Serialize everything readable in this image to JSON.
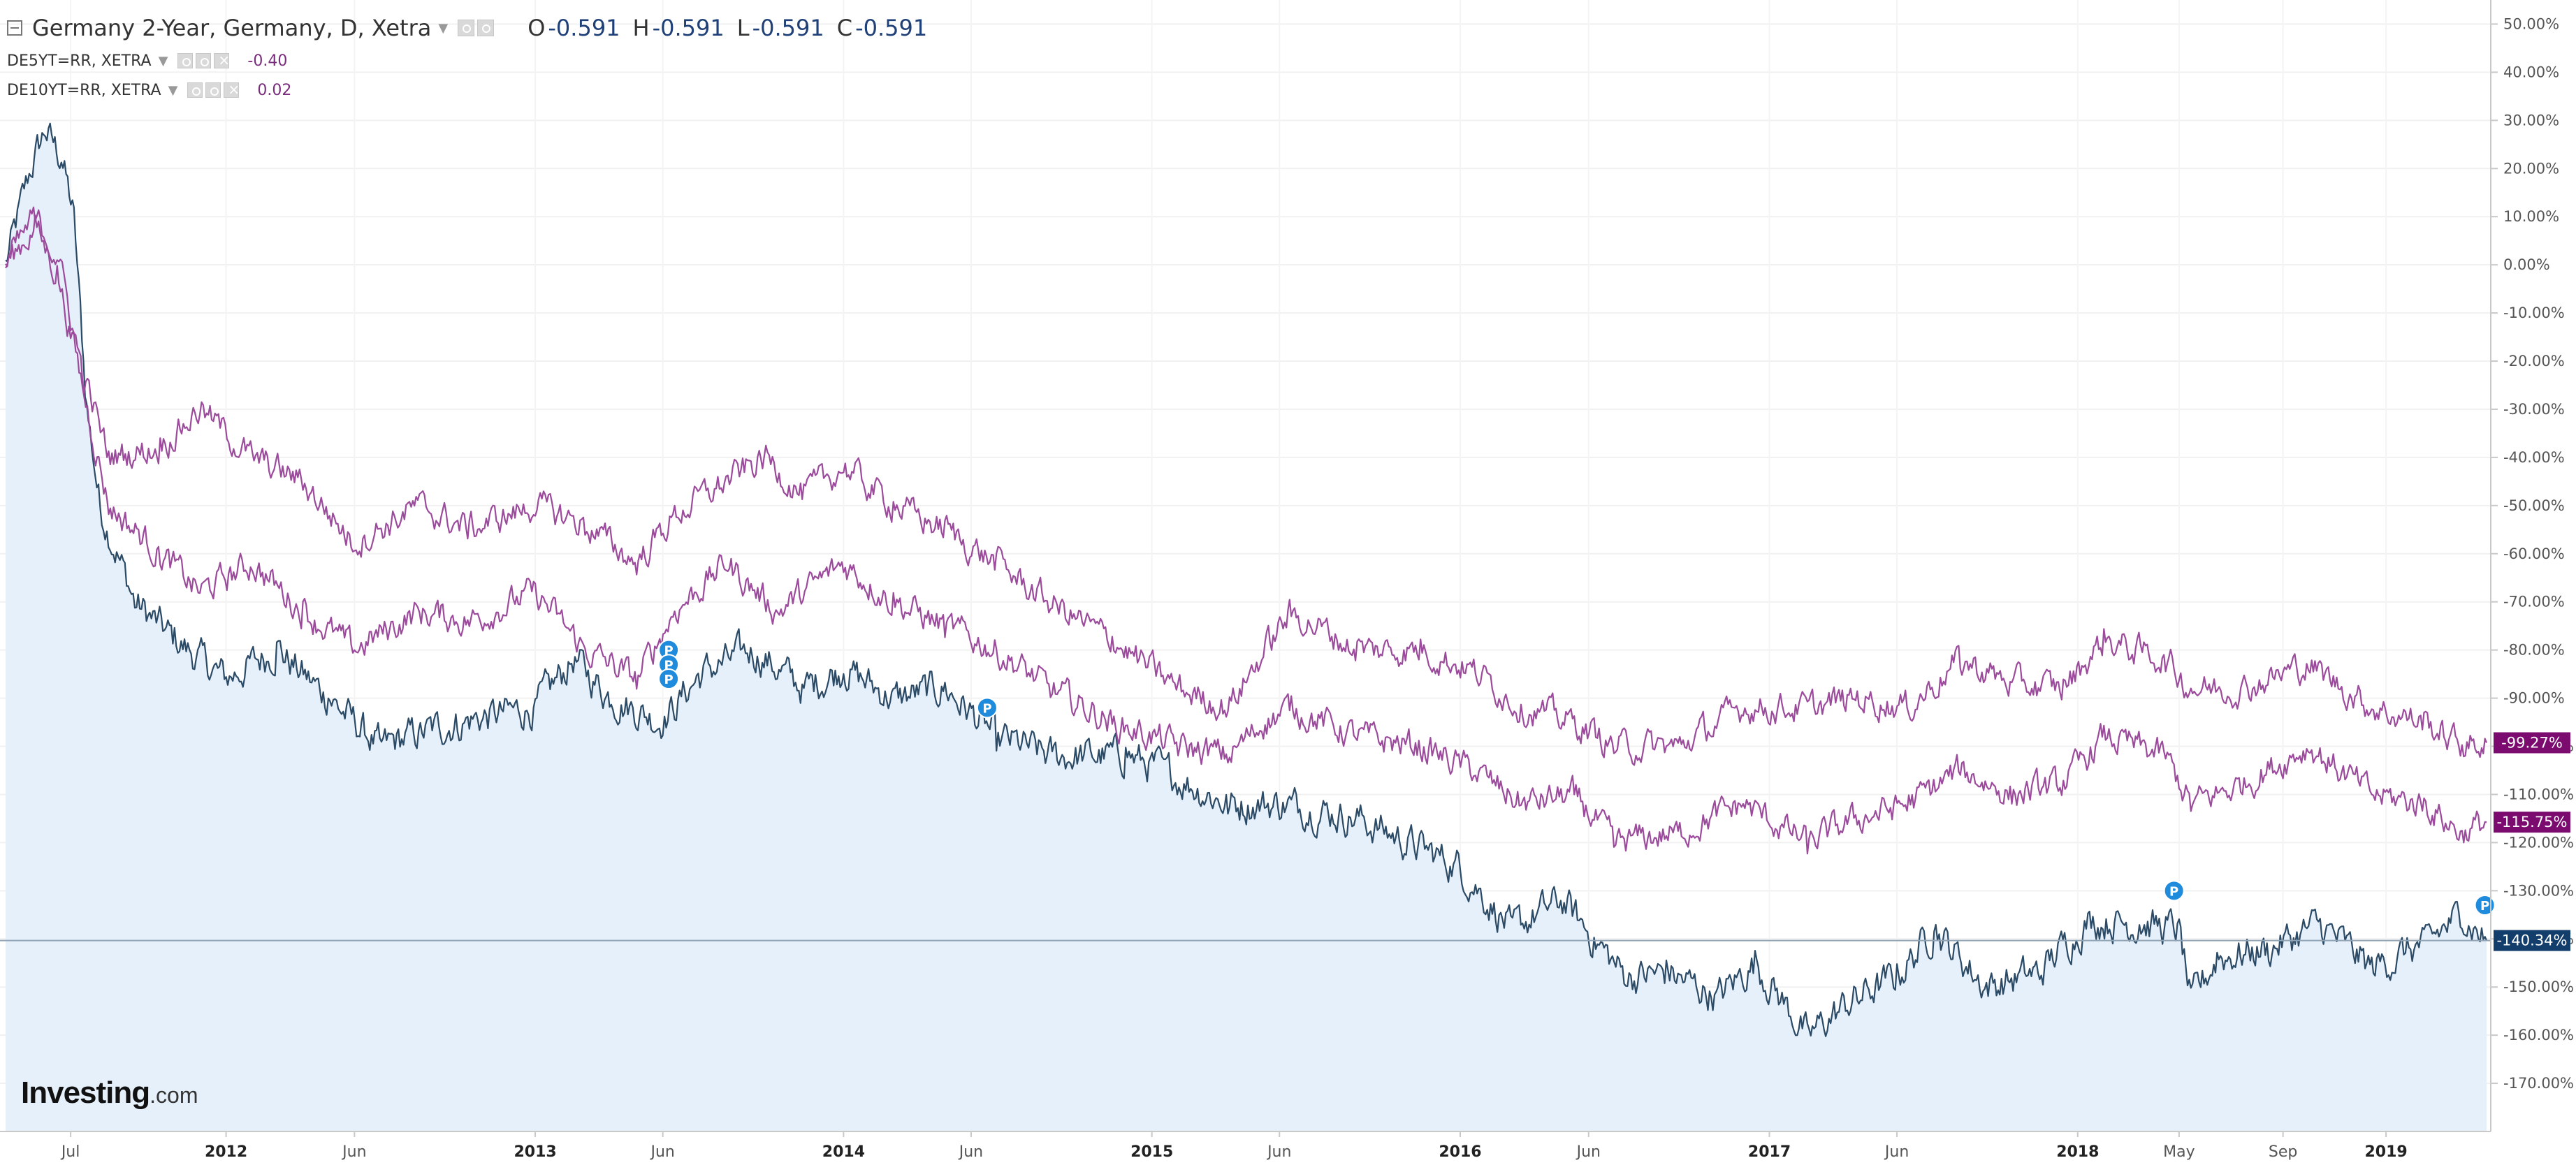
{
  "legend": {
    "main_title": "Germany 2-Year, Germany, D, Xetra",
    "o_label": "O",
    "o_value": "-0.591",
    "h_label": "H",
    "h_value": "-0.591",
    "l_label": "L",
    "l_value": "-0.591",
    "c_label": "C",
    "c_value": "-0.591",
    "series2_title": "DE5YT=RR, XETRA",
    "series2_value": "-0.40",
    "series3_title": "DE10YT=RR, XETRA",
    "series3_value": "0.02"
  },
  "logo": {
    "bold": "Investing",
    "suffix": ".com"
  },
  "colors": {
    "main_line": "#2b4a66",
    "main_fill": "#e6f0fb",
    "compare_line": "#9c4b9c",
    "last_badge_main": "#133d6b",
    "last_badge_compare": "#7c0b70",
    "marker": "#1f8bdc"
  },
  "chart_data": {
    "type": "line",
    "title": "Germany 2-Year, Germany, D, Xetra",
    "y_unit": "percent change",
    "ylim": [
      -180,
      55
    ],
    "y_ticks": [
      "50.00%",
      "40.00%",
      "30.00%",
      "20.00%",
      "10.00%",
      "0.00%",
      "-10.00%",
      "-20.00%",
      "-30.00%",
      "-40.00%",
      "-50.00%",
      "-60.00%",
      "-70.00%",
      "-80.00%",
      "-90.00%",
      "-100.00%",
      "-110.00%",
      "-120.00%",
      "-130.00%",
      "-140.00%",
      "-150.00%",
      "-160.00%",
      "-170.00%"
    ],
    "x_ticks": [
      "Jul",
      "2012",
      "Jun",
      "2013",
      "Jun",
      "2014",
      "Jun",
      "2015",
      "Jun",
      "2016",
      "Jun",
      "2017",
      "Jun",
      "2018",
      "May",
      "Sep",
      "2019"
    ],
    "x_tick_dates": [
      "2011-07-01",
      "2012-01-01",
      "2012-06-01",
      "2013-01-01",
      "2013-06-01",
      "2014-01-01",
      "2014-06-01",
      "2015-01-01",
      "2015-06-01",
      "2016-01-01",
      "2016-06-01",
      "2017-01-01",
      "2017-06-01",
      "2018-01-01",
      "2018-05-01",
      "2018-09-01",
      "2019-01-01"
    ],
    "x_range": [
      "2011-04-15",
      "2019-04-30"
    ],
    "series": [
      {
        "name": "Germany 2-Year",
        "style": "area",
        "last_label": "-140.34%",
        "points": [
          [
            "2011-04-15",
            0
          ],
          [
            "2011-05-15",
            20
          ],
          [
            "2011-06-01",
            28
          ],
          [
            "2011-06-20",
            22
          ],
          [
            "2011-07-05",
            10
          ],
          [
            "2011-07-20",
            -30
          ],
          [
            "2011-08-05",
            -50
          ],
          [
            "2011-09-15",
            -70
          ],
          [
            "2011-11-01",
            -78
          ],
          [
            "2012-01-01",
            -86
          ],
          [
            "2012-03-01",
            -80
          ],
          [
            "2012-05-01",
            -90
          ],
          [
            "2012-07-01",
            -100
          ],
          [
            "2012-10-01",
            -95
          ],
          [
            "2013-01-01",
            -92
          ],
          [
            "2013-02-15",
            -82
          ],
          [
            "2013-04-01",
            -90
          ],
          [
            "2013-06-01",
            -95
          ],
          [
            "2013-07-15",
            -85
          ],
          [
            "2013-09-15",
            -80
          ],
          [
            "2013-11-15",
            -88
          ],
          [
            "2014-01-01",
            -84
          ],
          [
            "2014-03-01",
            -90
          ],
          [
            "2014-05-01",
            -88
          ],
          [
            "2014-07-01",
            -98
          ],
          [
            "2014-09-01",
            -102
          ],
          [
            "2014-12-01",
            -102
          ],
          [
            "2015-01-15",
            -105
          ],
          [
            "2015-04-01",
            -112
          ],
          [
            "2015-06-15",
            -112
          ],
          [
            "2015-09-01",
            -115
          ],
          [
            "2016-01-01",
            -125
          ],
          [
            "2016-03-01",
            -138
          ],
          [
            "2016-05-01",
            -132
          ],
          [
            "2016-07-15",
            -148
          ],
          [
            "2016-09-01",
            -147
          ],
          [
            "2016-11-01",
            -152
          ],
          [
            "2016-12-15",
            -145
          ],
          [
            "2017-02-15",
            -160
          ],
          [
            "2017-04-15",
            -152
          ],
          [
            "2017-06-01",
            -148
          ],
          [
            "2017-07-15",
            -138
          ],
          [
            "2017-09-15",
            -150
          ],
          [
            "2017-11-15",
            -147
          ],
          [
            "2018-01-15",
            -136
          ],
          [
            "2018-03-15",
            -137
          ],
          [
            "2018-05-01",
            -138
          ],
          [
            "2018-05-15",
            -153
          ],
          [
            "2018-06-15",
            -144
          ],
          [
            "2018-08-15",
            -142
          ],
          [
            "2018-10-15",
            -137
          ],
          [
            "2018-12-15",
            -146
          ],
          [
            "2019-02-15",
            -141
          ],
          [
            "2019-04-01",
            -135
          ],
          [
            "2019-04-30",
            -140.34
          ]
        ]
      },
      {
        "name": "DE5YT=RR",
        "style": "line",
        "last_label": "-115.75%",
        "points": [
          [
            "2011-04-15",
            0
          ],
          [
            "2011-05-20",
            8
          ],
          [
            "2011-06-15",
            -2
          ],
          [
            "2011-07-15",
            -25
          ],
          [
            "2011-08-15",
            -50
          ],
          [
            "2011-10-15",
            -60
          ],
          [
            "2011-12-01",
            -68
          ],
          [
            "2012-02-01",
            -62
          ],
          [
            "2012-04-01",
            -72
          ],
          [
            "2012-06-01",
            -80
          ],
          [
            "2012-08-15",
            -72
          ],
          [
            "2012-10-15",
            -74
          ],
          [
            "2013-01-01",
            -68
          ],
          [
            "2013-03-01",
            -80
          ],
          [
            "2013-05-01",
            -86
          ],
          [
            "2013-06-15",
            -72
          ],
          [
            "2013-08-15",
            -62
          ],
          [
            "2013-10-15",
            -72
          ],
          [
            "2014-01-01",
            -62
          ],
          [
            "2014-03-01",
            -70
          ],
          [
            "2014-05-01",
            -75
          ],
          [
            "2014-07-01",
            -80
          ],
          [
            "2014-09-01",
            -88
          ],
          [
            "2014-11-15",
            -95
          ],
          [
            "2015-02-01",
            -100
          ],
          [
            "2015-04-01",
            -102
          ],
          [
            "2015-05-15",
            -95
          ],
          [
            "2015-06-15",
            -92
          ],
          [
            "2015-09-01",
            -98
          ],
          [
            "2015-11-15",
            -100
          ],
          [
            "2016-01-15",
            -105
          ],
          [
            "2016-03-15",
            -112
          ],
          [
            "2016-05-15",
            -110
          ],
          [
            "2016-07-01",
            -120
          ],
          [
            "2016-09-15",
            -118
          ],
          [
            "2016-12-01",
            -112
          ],
          [
            "2017-02-15",
            -120
          ],
          [
            "2017-04-15",
            -115
          ],
          [
            "2017-06-15",
            -112
          ],
          [
            "2017-08-15",
            -105
          ],
          [
            "2017-10-15",
            -110
          ],
          [
            "2017-12-15",
            -108
          ],
          [
            "2018-02-01",
            -98
          ],
          [
            "2018-04-15",
            -102
          ],
          [
            "2018-05-15",
            -112
          ],
          [
            "2018-07-15",
            -108
          ],
          [
            "2018-10-01",
            -100
          ],
          [
            "2018-12-15",
            -110
          ],
          [
            "2019-02-15",
            -112
          ],
          [
            "2019-04-01",
            -118
          ],
          [
            "2019-04-30",
            -115.75
          ]
        ]
      },
      {
        "name": "DE10YT=RR",
        "style": "line",
        "last_label": "-99.27%",
        "points": [
          [
            "2011-04-15",
            0
          ],
          [
            "2011-05-20",
            10
          ],
          [
            "2011-06-15",
            2
          ],
          [
            "2011-07-15",
            -22
          ],
          [
            "2011-08-15",
            -40
          ],
          [
            "2011-10-15",
            -38
          ],
          [
            "2011-12-01",
            -30
          ],
          [
            "2012-02-01",
            -40
          ],
          [
            "2012-04-01",
            -45
          ],
          [
            "2012-06-01",
            -58
          ],
          [
            "2012-08-15",
            -50
          ],
          [
            "2012-10-15",
            -55
          ],
          [
            "2013-01-01",
            -50
          ],
          [
            "2013-03-01",
            -54
          ],
          [
            "2013-05-01",
            -62
          ],
          [
            "2013-06-15",
            -52
          ],
          [
            "2013-08-15",
            -45
          ],
          [
            "2013-10-01",
            -40
          ],
          [
            "2013-11-15",
            -48
          ],
          [
            "2014-01-01",
            -42
          ],
          [
            "2014-03-01",
            -50
          ],
          [
            "2014-05-01",
            -55
          ],
          [
            "2014-07-01",
            -62
          ],
          [
            "2014-09-01",
            -70
          ],
          [
            "2014-11-15",
            -78
          ],
          [
            "2015-02-01",
            -88
          ],
          [
            "2015-04-01",
            -92
          ],
          [
            "2015-05-15",
            -80
          ],
          [
            "2015-06-15",
            -72
          ],
          [
            "2015-09-01",
            -80
          ],
          [
            "2015-11-15",
            -80
          ],
          [
            "2016-01-15",
            -84
          ],
          [
            "2016-03-15",
            -92
          ],
          [
            "2016-05-15",
            -95
          ],
          [
            "2016-07-01",
            -100
          ],
          [
            "2016-09-15",
            -100
          ],
          [
            "2016-12-01",
            -92
          ],
          [
            "2017-02-15",
            -92
          ],
          [
            "2017-04-15",
            -90
          ],
          [
            "2017-06-15",
            -92
          ],
          [
            "2017-08-15",
            -82
          ],
          [
            "2017-10-15",
            -87
          ],
          [
            "2017-12-15",
            -88
          ],
          [
            "2018-02-01",
            -78
          ],
          [
            "2018-04-15",
            -82
          ],
          [
            "2018-05-15",
            -88
          ],
          [
            "2018-07-15",
            -88
          ],
          [
            "2018-10-01",
            -83
          ],
          [
            "2018-12-15",
            -92
          ],
          [
            "2019-02-15",
            -95
          ],
          [
            "2019-04-01",
            -100
          ],
          [
            "2019-04-30",
            -99.27
          ]
        ]
      }
    ],
    "horizontal_line_value": -140.34,
    "event_markers": [
      {
        "label": "P",
        "date": "2013-06-08",
        "value": -80
      },
      {
        "label": "P",
        "date": "2013-06-08",
        "value": -83
      },
      {
        "label": "P",
        "date": "2013-06-08",
        "value": -86
      },
      {
        "label": "P",
        "date": "2014-06-20",
        "value": -92
      },
      {
        "label": "P",
        "date": "2018-04-25",
        "value": -130
      },
      {
        "label": "P",
        "date": "2019-04-28",
        "value": -133
      }
    ]
  }
}
